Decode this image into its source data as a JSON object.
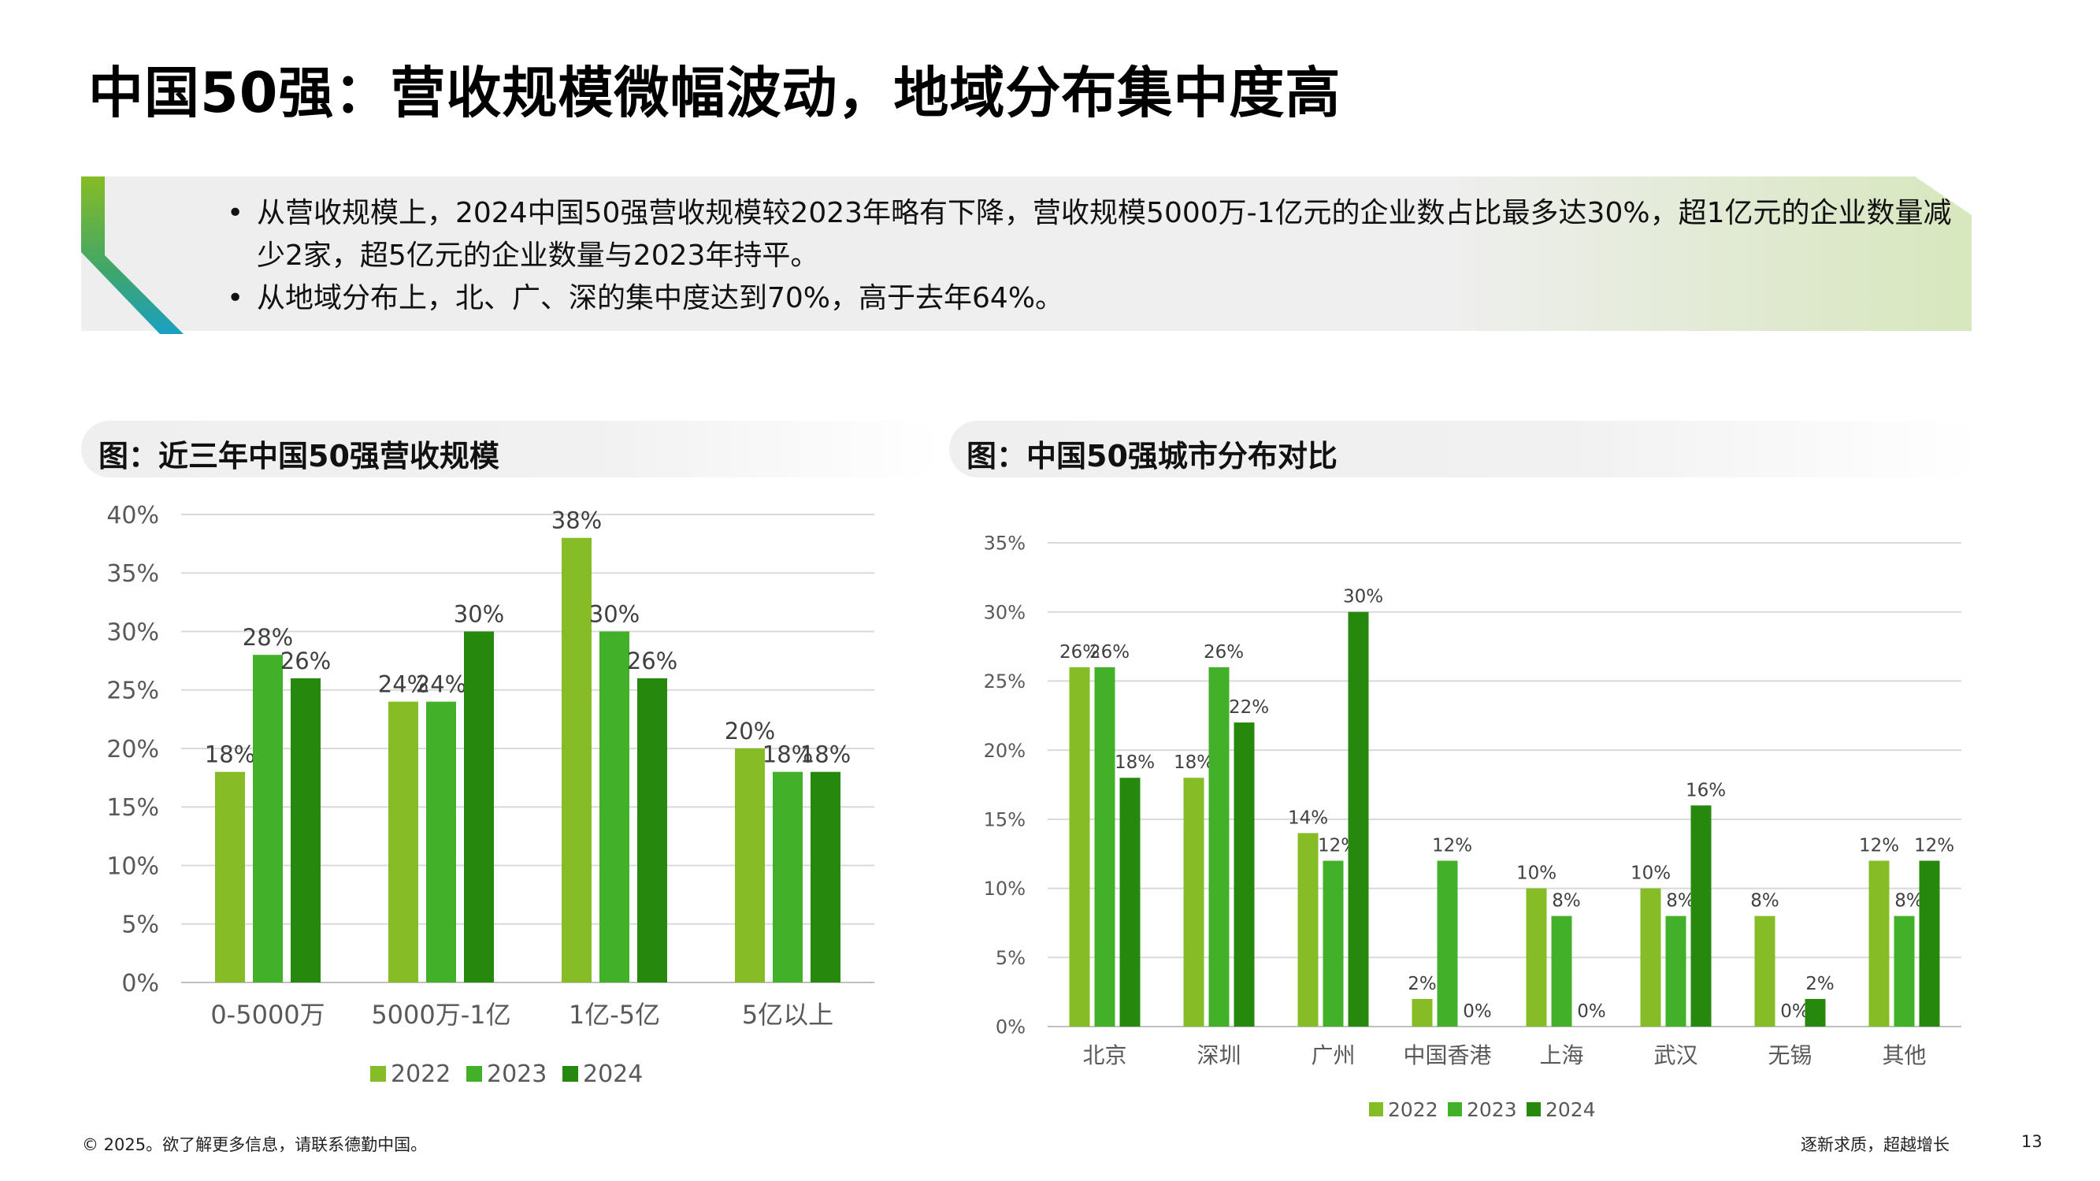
{
  "title": "中国50强：营收规模微幅波动，地域分布集中度高",
  "summary": {
    "bullets": [
      "从营收规模上，2024中国50强营收规模较2023年略有下降，营收规模5000万-1亿元的企业数占比最多达30%，超1亿元的企业数量减少2家，超5亿元的企业数量与2023年持平。",
      "从地域分布上，北、广、深的集中度达到70%，高于去年64%。"
    ]
  },
  "colors": {
    "c2022": "#86bc25",
    "c2023": "#43b02a",
    "c2024": "#26890d"
  },
  "chart_data": [
    {
      "type": "bar",
      "title": "图：近三年中国50强营收规模",
      "categories": [
        "0-5000万",
        "5000万-1亿",
        "1亿-5亿",
        "5亿以上"
      ],
      "series": [
        {
          "name": "2022",
          "values": [
            18,
            24,
            38,
            20
          ],
          "labels": [
            "18%",
            "24%",
            "38%",
            "20%"
          ]
        },
        {
          "name": "2023",
          "values": [
            28,
            24,
            30,
            18
          ],
          "labels": [
            "28%",
            "24%",
            "30%",
            "18%"
          ]
        },
        {
          "name": "2024",
          "values": [
            26,
            30,
            26,
            18
          ],
          "labels": [
            "26%",
            "30%",
            "26%",
            "18%"
          ]
        }
      ],
      "ylim": [
        0,
        40
      ],
      "yticks": [
        "0%",
        "5%",
        "10%",
        "15%",
        "20%",
        "25%",
        "30%",
        "35%",
        "40%"
      ],
      "legend": "bottom",
      "grid": true
    },
    {
      "type": "bar",
      "title": "图：中国50强城市分布对比",
      "categories": [
        "北京",
        "深圳",
        "广州",
        "中国香港",
        "上海",
        "武汉",
        "无锡",
        "其他"
      ],
      "series": [
        {
          "name": "2022",
          "values": [
            26,
            18,
            14,
            2,
            10,
            10,
            8,
            12
          ],
          "labels": [
            "26%",
            "18%",
            "14%",
            "2%",
            "10%",
            "10%",
            "8%",
            "12%"
          ]
        },
        {
          "name": "2023",
          "values": [
            26,
            26,
            12,
            12,
            8,
            8,
            0,
            8
          ],
          "labels": [
            "26%",
            "26%",
            "12%",
            "12%",
            "8%",
            "8%",
            "0%",
            "8%"
          ]
        },
        {
          "name": "2024",
          "values": [
            18,
            22,
            30,
            0,
            0,
            16,
            2,
            12
          ],
          "labels": [
            "18%",
            "22%",
            "30%",
            "0%",
            "0%",
            "16%",
            "2%",
            "12%"
          ]
        }
      ],
      "ylim": [
        0,
        35
      ],
      "yticks": [
        "0%",
        "5%",
        "10%",
        "15%",
        "20%",
        "25%",
        "30%",
        "35%"
      ],
      "legend": "bottom",
      "grid": true
    }
  ],
  "footer": {
    "copyright": "© 2025。欲了解更多信息，请联系德勤中国。",
    "slogan": "逐新求质，超越增长",
    "page": "13"
  }
}
